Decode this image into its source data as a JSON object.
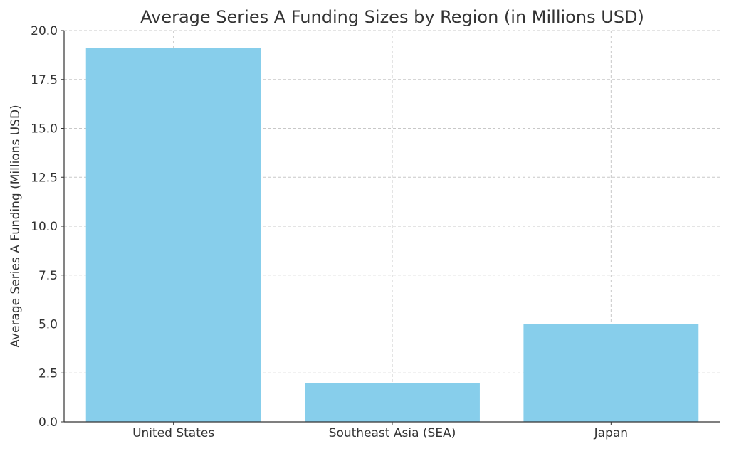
{
  "chart_data": {
    "type": "bar",
    "title": "Average Series A Funding Sizes by Region (in Millions USD)",
    "xlabel": "",
    "ylabel": "Average Series A Funding (Millions USD)",
    "categories": [
      "United States",
      "Southeast Asia (SEA)",
      "Japan"
    ],
    "values": [
      19.1,
      2.0,
      5.0
    ],
    "ylim": [
      0,
      20
    ],
    "yticks": [
      "0.0",
      "2.5",
      "5.0",
      "7.5",
      "10.0",
      "12.5",
      "15.0",
      "17.5",
      "20.0"
    ],
    "grid": true,
    "bar_color": "#87ceeb",
    "axis_color": "#333333",
    "grid_color": "#c8c8c8"
  }
}
